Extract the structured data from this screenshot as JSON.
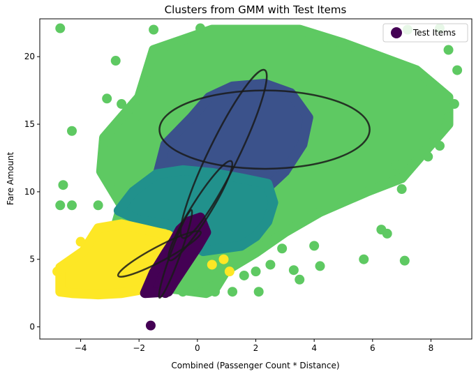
{
  "chart_data": {
    "type": "scatter",
    "title": "Clusters from GMM with Test Items",
    "xlabel": "Combined (Passenger Count * Distance)",
    "ylabel": "Fare Amount",
    "xlim": [
      -5.4,
      9.4
    ],
    "ylim": [
      -0.9,
      22.8
    ],
    "xticks": [
      -4,
      -2,
      0,
      2,
      4,
      6,
      8
    ],
    "yticks": [
      0,
      5,
      10,
      15,
      20
    ],
    "grid": false,
    "legend": {
      "position": "top-right",
      "entries": [
        {
          "label": "Test Items",
          "color": "#440154"
        }
      ]
    },
    "colors": {
      "cluster0": "#440154",
      "cluster1": "#3b528b",
      "cluster2": "#21918c",
      "cluster3": "#5ec962",
      "cluster4": "#fde725",
      "ellipse": "#1a1a1a"
    },
    "regions": [
      {
        "cluster": "cluster3",
        "color": "#5ec962",
        "outline": [
          [
            -2.6,
            9.0
          ],
          [
            -3.3,
            11.5
          ],
          [
            -3.2,
            14.0
          ],
          [
            -2.0,
            17.0
          ],
          [
            -1.5,
            20.5
          ],
          [
            0.5,
            22.0
          ],
          [
            3.5,
            22.0
          ],
          [
            5.0,
            21.0
          ],
          [
            7.5,
            19.0
          ],
          [
            8.6,
            17.0
          ],
          [
            8.6,
            15.0
          ],
          [
            8.0,
            13.5
          ],
          [
            7.0,
            11.0
          ],
          [
            5.8,
            10.0
          ],
          [
            4.2,
            8.5
          ],
          [
            3.0,
            7.0
          ],
          [
            2.0,
            5.5
          ],
          [
            1.0,
            4.2
          ],
          [
            0.6,
            2.8
          ],
          [
            0.3,
            2.5
          ],
          [
            -1.5,
            3.0
          ],
          [
            -2.5,
            6.0
          ],
          [
            -2.8,
            7.5
          ]
        ]
      },
      {
        "cluster": "cluster1",
        "color": "#3b528b",
        "outline": [
          [
            -1.4,
            11.0
          ],
          [
            -1.1,
            13.5
          ],
          [
            -0.2,
            15.5
          ],
          [
            0.4,
            17.0
          ],
          [
            1.2,
            17.8
          ],
          [
            2.3,
            18.0
          ],
          [
            3.2,
            17.3
          ],
          [
            3.8,
            15.5
          ],
          [
            3.6,
            13.5
          ],
          [
            3.0,
            11.5
          ],
          [
            2.5,
            10.5
          ],
          [
            1.5,
            10.6
          ],
          [
            0.5,
            11.0
          ],
          [
            -0.5,
            11.2
          ]
        ]
      },
      {
        "cluster": "cluster2",
        "color": "#21918c",
        "outline": [
          [
            -2.7,
            8.6
          ],
          [
            -2.2,
            10.0
          ],
          [
            -1.4,
            11.3
          ],
          [
            -0.5,
            11.6
          ],
          [
            0.5,
            11.4
          ],
          [
            1.5,
            11.0
          ],
          [
            2.4,
            10.6
          ],
          [
            2.6,
            9.2
          ],
          [
            2.4,
            7.8
          ],
          [
            2.0,
            6.7
          ],
          [
            1.5,
            6.0
          ],
          [
            0.2,
            5.6
          ],
          [
            -0.6,
            6.8
          ],
          [
            -1.0,
            7.6
          ],
          [
            -2.0,
            7.9
          ]
        ]
      },
      {
        "cluster": "cluster4",
        "color": "#fde725",
        "outline": [
          [
            -4.7,
            2.6
          ],
          [
            -4.7,
            4.4
          ],
          [
            -3.9,
            5.6
          ],
          [
            -3.4,
            7.3
          ],
          [
            -2.6,
            7.6
          ],
          [
            -1.8,
            7.2
          ],
          [
            -1.0,
            6.8
          ],
          [
            -0.7,
            6.3
          ],
          [
            -1.0,
            5.2
          ],
          [
            -1.4,
            3.8
          ],
          [
            -1.8,
            2.8
          ],
          [
            -2.6,
            2.5
          ],
          [
            -3.4,
            2.4
          ],
          [
            -4.3,
            2.5
          ]
        ]
      },
      {
        "cluster": "cluster0",
        "color": "#440154",
        "outline": [
          [
            -1.8,
            2.5
          ],
          [
            -1.5,
            4.0
          ],
          [
            -1.1,
            5.4
          ],
          [
            -0.8,
            6.4
          ],
          [
            -0.6,
            7.2
          ],
          [
            -0.3,
            7.8
          ],
          [
            0.1,
            8.1
          ],
          [
            0.3,
            7.0
          ],
          [
            0.0,
            5.9
          ],
          [
            -0.4,
            4.6
          ],
          [
            -0.8,
            3.3
          ],
          [
            -1.0,
            2.6
          ]
        ]
      }
    ],
    "outliers": {
      "cluster3": [
        [
          -4.7,
          22.1
        ],
        [
          -4.3,
          14.5
        ],
        [
          -4.6,
          10.5
        ],
        [
          -4.7,
          9.0
        ],
        [
          -4.3,
          9.0
        ],
        [
          -3.4,
          9.0
        ],
        [
          -3.1,
          16.9
        ],
        [
          -2.8,
          19.7
        ],
        [
          -2.6,
          16.5
        ],
        [
          -2.1,
          15.6
        ],
        [
          -1.5,
          22.0
        ],
        [
          0.1,
          22.1
        ],
        [
          7.2,
          22.0
        ],
        [
          8.3,
          22.1
        ],
        [
          8.6,
          20.5
        ],
        [
          8.9,
          19.0
        ],
        [
          8.8,
          16.5
        ],
        [
          8.6,
          15.5
        ],
        [
          8.3,
          13.4
        ],
        [
          7.9,
          12.6
        ],
        [
          7.0,
          10.2
        ],
        [
          6.8,
          12.0
        ],
        [
          5.7,
          5.0
        ],
        [
          7.1,
          4.9
        ],
        [
          5.6,
          10.0
        ],
        [
          4.0,
          6.0
        ],
        [
          3.5,
          3.5
        ],
        [
          3.3,
          4.2
        ],
        [
          2.9,
          5.8
        ],
        [
          2.5,
          4.6
        ],
        [
          2.1,
          2.6
        ],
        [
          2.0,
          4.1
        ],
        [
          1.6,
          3.8
        ],
        [
          1.2,
          2.6
        ],
        [
          0.6,
          2.6
        ],
        [
          0.5,
          3.0
        ],
        [
          -0.5,
          2.6
        ],
        [
          -0.1,
          3.1
        ],
        [
          4.2,
          4.5
        ],
        [
          6.3,
          7.2
        ],
        [
          6.5,
          6.9
        ]
      ],
      "cluster4": [
        [
          -4.8,
          4.1
        ],
        [
          -4.0,
          6.3
        ],
        [
          -2.8,
          7.5
        ],
        [
          0.5,
          4.6
        ],
        [
          0.9,
          5.0
        ],
        [
          1.1,
          4.1
        ]
      ],
      "cluster0": [
        [
          -1.6,
          0.1
        ],
        [
          -1.1,
          2.5
        ]
      ]
    },
    "ellipses": [
      {
        "cx": 2.3,
        "cy": 14.6,
        "rx": 3.6,
        "ry": 2.9,
        "rotate": 0
      },
      {
        "cx": 0.9,
        "cy": 12.8,
        "rx": 3.2,
        "ry": 1.1,
        "rotate": -64
      },
      {
        "cx": 0.1,
        "cy": 8.6,
        "rx": 2.0,
        "ry": 0.7,
        "rotate": -58
      },
      {
        "cx": -1.3,
        "cy": 5.4,
        "rx": 1.6,
        "ry": 0.55,
        "rotate": -28
      },
      {
        "cx": -0.75,
        "cy": 5.4,
        "rx": 1.6,
        "ry": 0.35,
        "rotate": -70
      }
    ]
  }
}
